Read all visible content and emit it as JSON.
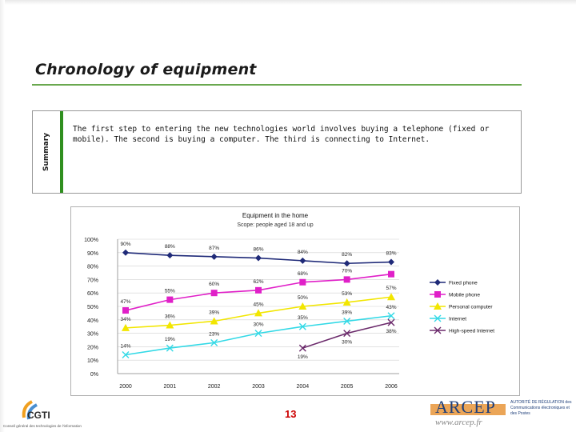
{
  "page": {
    "title": "Chronology of equipment",
    "summary_label": "Summary",
    "summary_text": "The first step to entering the new technologies world involves buying a telephone (fixed or mobile). The second is buying a computer. The third is connecting to Internet.",
    "page_number": "13",
    "accent_green": "#2f8f1f"
  },
  "footer": {
    "left_logo": "CGTI",
    "left_tagline": "Conseil général des technologies de l'information",
    "right_logo": "ARCEP",
    "right_url": "www.arcep.fr",
    "right_side_text": "AUTORITÉ DE RÉGULATION des Communications électroniques et des Postes"
  },
  "chart_data": {
    "type": "line",
    "title": "Equipment in the home",
    "subtitle": "Scope: people aged 18 and up",
    "x": [
      "2000",
      "2001",
      "2002",
      "2003",
      "2004",
      "2005",
      "2006"
    ],
    "ylim": [
      0,
      100
    ],
    "yticks": [
      "0%",
      "10%",
      "20%",
      "30%",
      "40%",
      "50%",
      "60%",
      "70%",
      "80%",
      "90%",
      "100%"
    ],
    "legend_position": "right",
    "series": [
      {
        "name": "Fixed phone",
        "color": "#1f2a78",
        "marker": "diamond",
        "values": [
          90,
          88,
          87,
          86,
          84,
          82,
          83
        ],
        "labels": [
          "90%",
          "88%",
          "87%",
          "86%",
          "84%",
          "82%",
          "83%"
        ]
      },
      {
        "name": "Mobile phone",
        "color": "#e020c8",
        "marker": "square",
        "values": [
          47,
          55,
          60,
          62,
          68,
          70,
          74
        ],
        "labels": [
          "47%",
          "55%",
          "60%",
          "62%",
          "68%",
          "70%",
          ""
        ]
      },
      {
        "name": "Personal computer",
        "color": "#f2e600",
        "marker": "triangle",
        "values": [
          34,
          36,
          39,
          45,
          50,
          53,
          57
        ],
        "labels": [
          "34%",
          "36%",
          "39%",
          "45%",
          "50%",
          "53%",
          "57%"
        ]
      },
      {
        "name": "Internet",
        "color": "#33d9e6",
        "marker": "x",
        "values": [
          14,
          19,
          23,
          30,
          35,
          39,
          43
        ],
        "labels": [
          "14%",
          "19%",
          "23%",
          "30%",
          "35%",
          "39%",
          "43%"
        ]
      },
      {
        "name": "High-speed Internet",
        "color": "#6b2a6b",
        "marker": "x",
        "values": [
          null,
          null,
          null,
          null,
          19,
          30,
          38
        ],
        "labels": [
          "",
          "",
          "",
          "",
          "19%",
          "30%",
          "38%"
        ]
      }
    ]
  }
}
